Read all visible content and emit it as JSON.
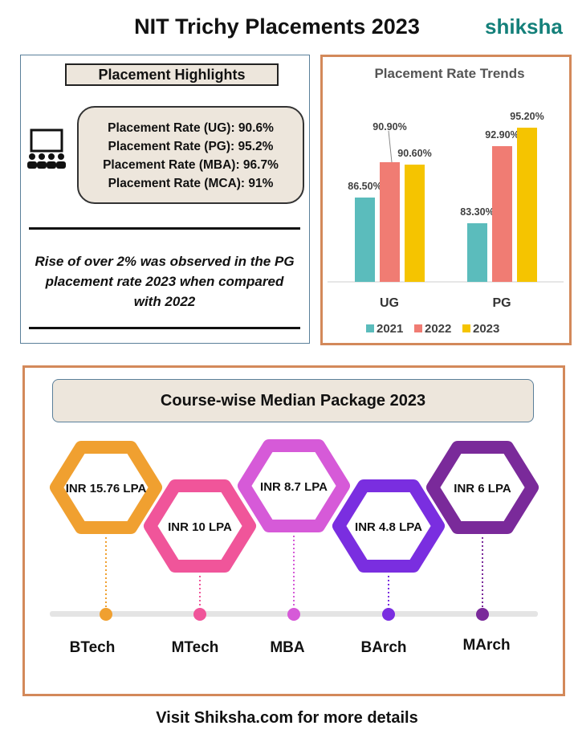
{
  "title": "NIT Trichy Placements 2023",
  "logo": "shiksha",
  "highlights": {
    "heading": "Placement Highlights",
    "icon": "audience-presentation-icon",
    "rates": [
      "Placement Rate (UG): 90.6%",
      "Placement Rate (PG): 95.2%",
      "Placement Rate (MBA): 96.7%",
      "Placement Rate (MCA): 91%"
    ],
    "note": "Rise of over 2% was observed in the PG placement rate 2023 when compared with 2022"
  },
  "chart_data": {
    "type": "bar",
    "title": "Placement Rate Trends",
    "categories": [
      "UG",
      "PG"
    ],
    "series": [
      {
        "name": "2021",
        "values": [
          86.5,
          83.3
        ],
        "labels": [
          "86.50%",
          "83.30%"
        ],
        "color": "#5bbcbc"
      },
      {
        "name": "2022",
        "values": [
          90.9,
          92.9
        ],
        "labels": [
          "90.90%",
          "92.90%"
        ],
        "color": "#f07c73"
      },
      {
        "name": "2023",
        "values": [
          90.6,
          95.2
        ],
        "labels": [
          "90.60%",
          "95.20%"
        ],
        "color": "#f5c400"
      }
    ],
    "ylim": [
      76,
      97
    ],
    "grid": false,
    "legend": "bottom"
  },
  "median": {
    "heading": "Course-wise Median Package 2023",
    "items": [
      {
        "course": "BTech",
        "package": "INR 15.76 LPA",
        "color": "#f0a030"
      },
      {
        "course": "MTech",
        "package": "INR 10 LPA",
        "color": "#f0559a"
      },
      {
        "course": "MBA",
        "package": "INR 8.7 LPA",
        "color": "#d65ad8"
      },
      {
        "course": "BArch",
        "package": "INR 4.8 LPA",
        "color": "#7a2ee0"
      },
      {
        "course": "MArch",
        "package": "INR 6 LPA",
        "color": "#7a2a9a"
      }
    ]
  },
  "footer": "Visit Shiksha.com for more details"
}
